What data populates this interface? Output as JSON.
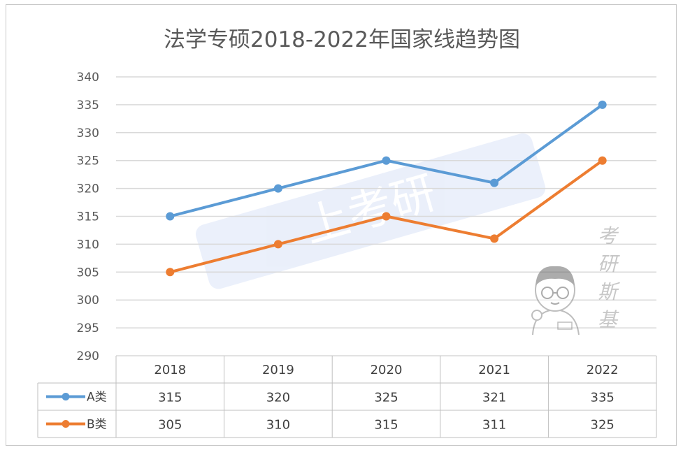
{
  "chart_data": {
    "type": "line",
    "title": "法学专硕2018-2022年国家线趋势图",
    "categories": [
      "2018",
      "2019",
      "2020",
      "2021",
      "2022"
    ],
    "series": [
      {
        "name": "A类",
        "color": "#5b9bd5",
        "values": [
          315,
          320,
          325,
          321,
          335
        ]
      },
      {
        "name": "B类",
        "color": "#ed7d31",
        "values": [
          305,
          310,
          315,
          311,
          325
        ]
      }
    ],
    "ylim": [
      290,
      340
    ],
    "yticks": [
      "290",
      "295",
      "300",
      "305",
      "310",
      "315",
      "320",
      "325",
      "330",
      "335",
      "340"
    ],
    "grid": true,
    "data_table": true,
    "xlabel": "",
    "ylabel": ""
  },
  "watermark": {
    "chars": [
      "考",
      "研",
      "斯",
      "基"
    ],
    "logo_text": "考研斯基",
    "banner_text": "上考研"
  },
  "colors": {
    "gridline": "#d9d9d9",
    "table_border": "#bfbfbf",
    "title_text": "#595959"
  }
}
